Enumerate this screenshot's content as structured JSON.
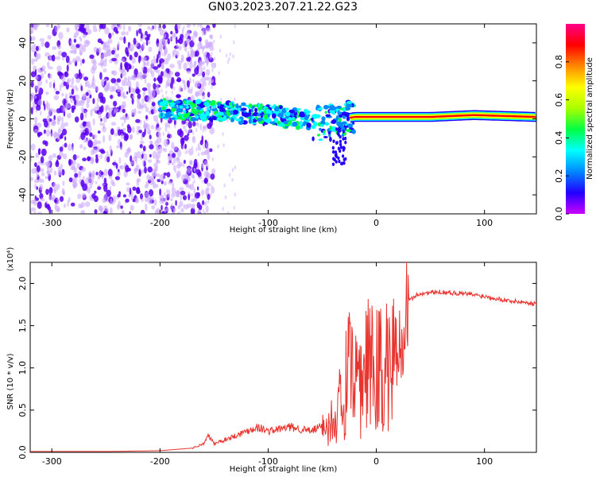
{
  "title": "GN03.2023.207.21.22.G23",
  "colors": {
    "plot_bg": "#ffffff",
    "axis": "#000000",
    "snr_line": "#e8342f",
    "spectrum_base": "#6a00ff"
  },
  "chart_data": [
    {
      "type": "heatmap",
      "xlabel": "Height of straight line (km)",
      "ylabel": "Frequency (Hz)",
      "xlim": [
        -320,
        148
      ],
      "ylim": [
        -50,
        50
      ],
      "xticks": [
        -300,
        -200,
        -100,
        0,
        100
      ],
      "yticks": [
        -40,
        -20,
        0,
        20,
        40
      ],
      "grid": false,
      "colorbar": {
        "label": "Normalized spectral amplitude",
        "range": [
          0.0,
          1.0
        ],
        "ticks": [
          0.0,
          0.2,
          0.4,
          0.6,
          0.8
        ],
        "colormap": [
          "#cc00ff",
          "#2200ff",
          "#0088ff",
          "#00ffff",
          "#00ff44",
          "#aaff00",
          "#ffff00",
          "#ff8800",
          "#ff0000",
          "#ff0088"
        ]
      },
      "ridge": [
        {
          "x": -200,
          "y": 5
        },
        {
          "x": -150,
          "y": 4
        },
        {
          "x": -100,
          "y": 2
        },
        {
          "x": -70,
          "y": 0
        },
        {
          "x": -50,
          "y": -3
        },
        {
          "x": -30,
          "y": 0
        },
        {
          "x": -20,
          "y": 1
        },
        {
          "x": 0,
          "y": 1
        },
        {
          "x": 50,
          "y": 1
        },
        {
          "x": 90,
          "y": 2
        },
        {
          "x": 148,
          "y": 1
        }
      ]
    },
    {
      "type": "line",
      "xlabel": "Height of straight line (km)",
      "ylabel": "SNR (10 * v/v)",
      "yscale_label": "(x10⁴)",
      "xlim": [
        -320,
        148
      ],
      "ylim": [
        0.0,
        2.25
      ],
      "xticks": [
        -300,
        -200,
        -100,
        0,
        100
      ],
      "yticks": [
        0.0,
        0.5,
        1.0,
        1.5,
        2.0
      ],
      "ytick_labels": [
        "0.0",
        "0.5",
        "1.0",
        "1.5",
        "2.0"
      ],
      "grid": false,
      "series": [
        {
          "x": [
            -320,
            -250,
            -200,
            -170,
            -160,
            -155,
            -150,
            -130,
            -110,
            -100,
            -80,
            -60,
            -45,
            -35,
            -25,
            -20,
            -10,
            0,
            10,
            20,
            30,
            40,
            60,
            80,
            100,
            120,
            148
          ],
          "y": [
            0.01,
            0.01,
            0.02,
            0.05,
            0.1,
            0.2,
            0.1,
            0.2,
            0.3,
            0.25,
            0.3,
            0.25,
            0.35,
            0.7,
            1.2,
            1.0,
            1.3,
            1.3,
            1.35,
            1.5,
            1.8,
            1.88,
            1.9,
            1.88,
            1.85,
            1.8,
            1.76
          ]
        }
      ]
    }
  ]
}
